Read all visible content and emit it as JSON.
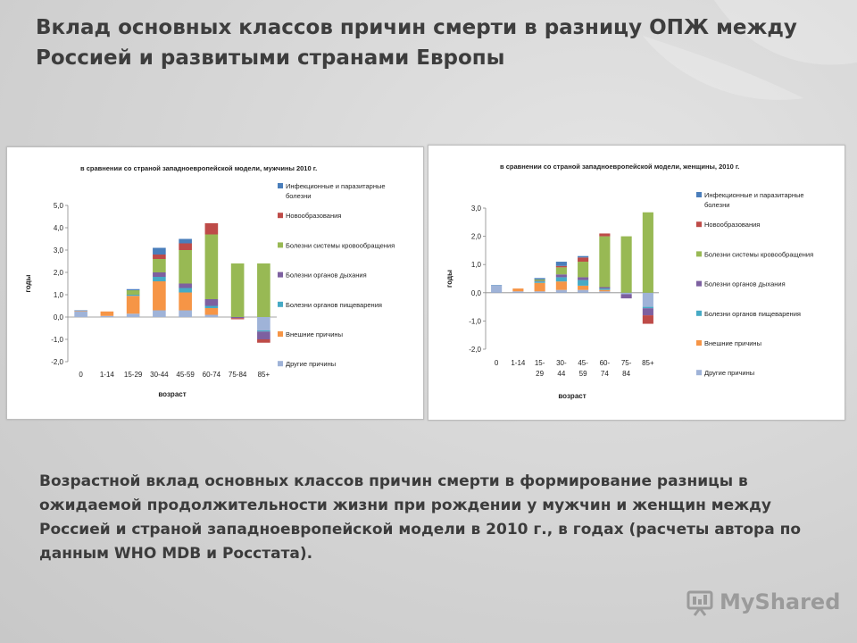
{
  "slide": {
    "title": "Вклад основных классов причин смерти в разницу ОПЖ между Россией и развитыми странами Европы",
    "caption": "Возрастной вклад основных классов причин смерти в формирование разницы в ожидаемой продолжительности жизни при рождении у мужчин и женщин между Россией и страной западноевропейской модели в 2010 г., в годах (расчеты автора по данным WHO MDB и Росстата).",
    "watermark": "MyShared"
  },
  "categories_colors": {
    "Инфекционные и паразитарные болезни": "#4a7ebb",
    "Новообразования": "#be4b48",
    "Болезни системы кровообращения": "#98b954",
    "Болезни органов дыхания": "#7d60a0",
    "Болезни органов пищеварения": "#46aac5",
    "Внешние причины": "#f69546",
    "Другие причины": "#9fb3d8"
  },
  "chart_data": [
    {
      "type": "bar",
      "stacked": true,
      "title": "в сравнении со страной западноевропейской модели, мужчины 2010 г.",
      "xlabel": "возраст",
      "ylabel": "годы",
      "ylim": [
        -2,
        5
      ],
      "yticks": [
        "5,0",
        "4,0",
        "3,0",
        "2,0",
        "1,0",
        "0,0",
        "-1,0",
        "-2,0"
      ],
      "categories": [
        "0",
        "1-14",
        "15-29",
        "30-44",
        "45-59",
        "60-74",
        "75-84",
        "85+"
      ],
      "legend": [
        "Инфекционные и паразитарные болезни",
        "Новообразования",
        "Болезни системы кровообращения",
        "Болезни органов дыхания",
        "Болезни органов пищеварения",
        "Внешние причины",
        "Другие причины"
      ],
      "series": [
        {
          "name": "Инфекционные и паразитарные болезни",
          "values": [
            0.03,
            0.0,
            0.05,
            0.3,
            0.2,
            0.0,
            0.0,
            0.0
          ]
        },
        {
          "name": "Новообразования",
          "values": [
            0.0,
            0.0,
            0.0,
            0.2,
            0.3,
            0.5,
            -0.05,
            -0.15
          ]
        },
        {
          "name": "Болезни системы кровообращения",
          "values": [
            0.0,
            0.0,
            0.2,
            0.6,
            1.5,
            2.9,
            2.4,
            2.4
          ]
        },
        {
          "name": "Болезни органов дыхания",
          "values": [
            0.0,
            0.0,
            0.0,
            0.2,
            0.2,
            0.3,
            -0.05,
            -0.35
          ]
        },
        {
          "name": "Болезни органов пищеварения",
          "values": [
            0.0,
            0.0,
            0.05,
            0.2,
            0.2,
            0.1,
            0.0,
            -0.05
          ]
        },
        {
          "name": "Внешние причины",
          "values": [
            0.02,
            0.2,
            0.8,
            1.3,
            0.8,
            0.3,
            0.0,
            0.0
          ]
        },
        {
          "name": "Другие причины",
          "values": [
            0.25,
            0.05,
            0.15,
            0.3,
            0.3,
            0.1,
            0.0,
            -0.6
          ]
        }
      ]
    },
    {
      "type": "bar",
      "stacked": true,
      "title": "в сравнении со страной западноевропейской модели, женщины, 2010 г.",
      "xlabel": "возраст",
      "ylabel": "годы",
      "ylim": [
        -2,
        3
      ],
      "yticks": [
        "3,0",
        "2,0",
        "1,0",
        "0,0",
        "-1,0",
        "-2,0"
      ],
      "categories": [
        "0",
        "1-14",
        "15-29",
        "30-44",
        "45-59",
        "60-74",
        "75-84",
        "85+"
      ],
      "legend": [
        "Инфекционные и паразитарные болезни",
        "Новообразования",
        "Болезни системы кровообращения",
        "Болезни органов дыхания",
        "Болезни органов пищеварения",
        "Внешние причины",
        "Другие причины"
      ],
      "series": [
        {
          "name": "Инфекционные и паразитарные болезни",
          "values": [
            0.02,
            0.0,
            0.05,
            0.15,
            0.05,
            0.0,
            0.0,
            0.0
          ]
        },
        {
          "name": "Новообразования",
          "values": [
            0.0,
            0.0,
            0.0,
            0.05,
            0.15,
            0.1,
            0.0,
            -0.3
          ]
        },
        {
          "name": "Болезни системы кровообращения",
          "values": [
            0.0,
            0.0,
            0.05,
            0.25,
            0.55,
            1.8,
            2.0,
            2.85
          ]
        },
        {
          "name": "Болезни органов дыхания",
          "values": [
            0.0,
            0.0,
            0.02,
            0.1,
            0.1,
            0.05,
            -0.15,
            -0.25
          ]
        },
        {
          "name": "Болезни органов пищеварения",
          "values": [
            0.0,
            0.0,
            0.05,
            0.15,
            0.2,
            0.05,
            0.0,
            -0.05
          ]
        },
        {
          "name": "Внешние причины",
          "values": [
            0.0,
            0.1,
            0.3,
            0.3,
            0.15,
            0.05,
            0.0,
            0.0
          ]
        },
        {
          "name": "Другие причины",
          "values": [
            0.25,
            0.05,
            0.05,
            0.1,
            0.1,
            0.05,
            -0.05,
            -0.5
          ]
        }
      ]
    }
  ]
}
